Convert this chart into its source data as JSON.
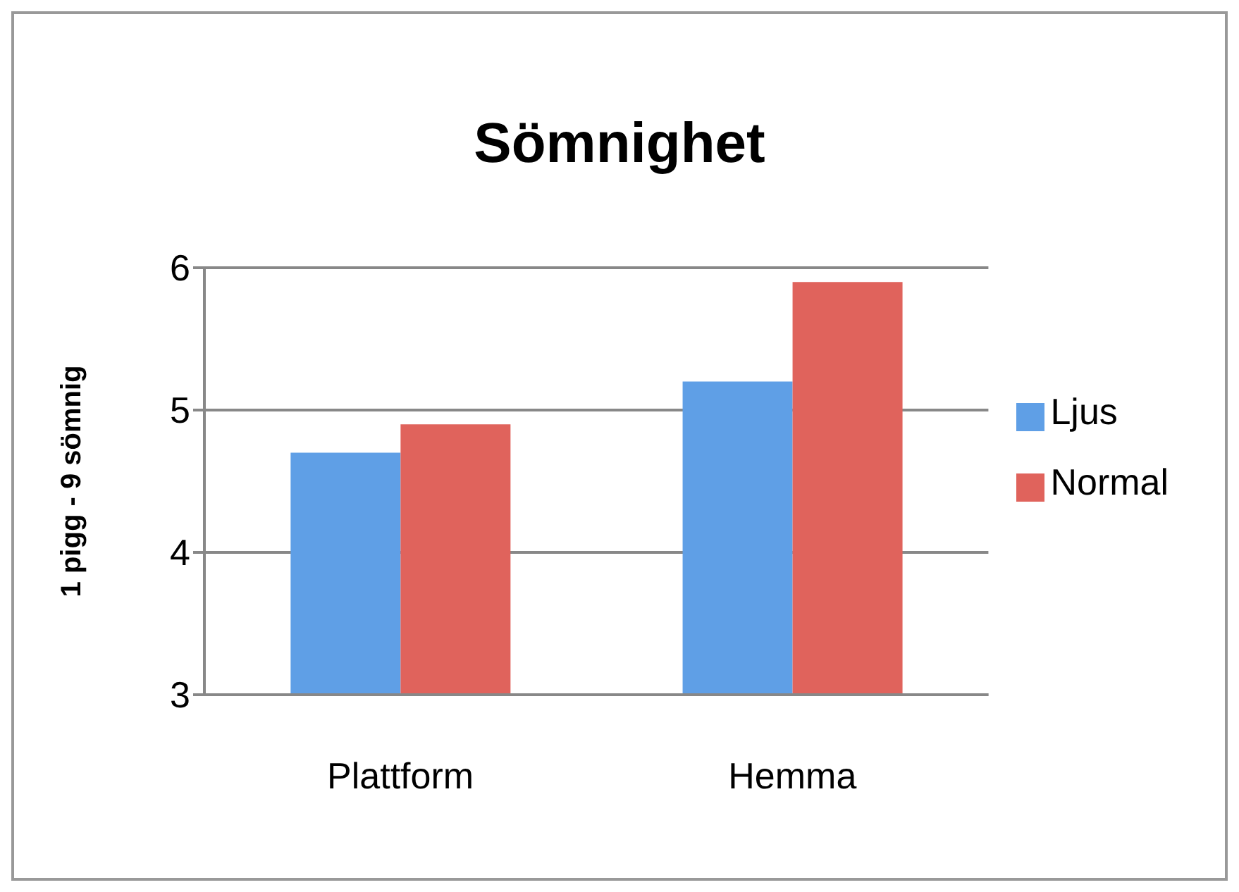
{
  "chart_data": {
    "type": "bar",
    "title": "Sömnighet",
    "ylabel": "1 pigg - 9 sömnig",
    "categories": [
      "Plattform",
      "Hemma"
    ],
    "series": [
      {
        "name": "Ljus",
        "color": "#5f9fe6",
        "values": [
          4.7,
          5.2
        ]
      },
      {
        "name": "Normal",
        "color": "#e0635c",
        "values": [
          4.9,
          5.9
        ]
      }
    ],
    "ylim": [
      3,
      6
    ],
    "yticks": [
      3,
      4,
      5,
      6
    ],
    "grid": "y",
    "legend": "right"
  }
}
